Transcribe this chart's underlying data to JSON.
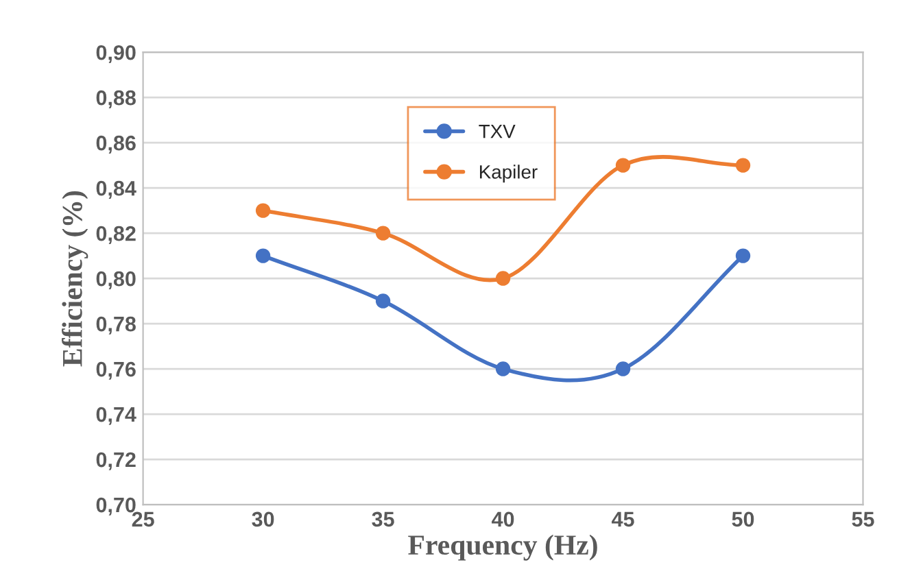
{
  "chart_data": {
    "type": "line",
    "xlabel": "Frequency (Hz)",
    "ylabel": "Efficiency (%)",
    "x": [
      30,
      35,
      40,
      45,
      50
    ],
    "series": [
      {
        "name": "TXV",
        "color": "#4472c4",
        "values": [
          0.81,
          0.79,
          0.76,
          0.76,
          0.81
        ]
      },
      {
        "name": "Kapiler",
        "color": "#ed7d31",
        "values": [
          0.83,
          0.82,
          0.8,
          0.85,
          0.85
        ]
      }
    ],
    "xlim": [
      25,
      55
    ],
    "xticks": [
      25,
      30,
      35,
      40,
      45,
      50,
      55
    ],
    "ylim": [
      0.7,
      0.9
    ],
    "yticks": [
      {
        "value": 0.7,
        "label": "0,70"
      },
      {
        "value": 0.72,
        "label": "0,72"
      },
      {
        "value": 0.74,
        "label": "0,74"
      },
      {
        "value": 0.76,
        "label": "0,76"
      },
      {
        "value": 0.78,
        "label": "0,78"
      },
      {
        "value": 0.8,
        "label": "0,80"
      },
      {
        "value": 0.82,
        "label": "0,82"
      },
      {
        "value": 0.84,
        "label": "0,84"
      },
      {
        "value": 0.86,
        "label": "0,86"
      },
      {
        "value": 0.88,
        "label": "0,88"
      },
      {
        "value": 0.9,
        "label": "0,90"
      }
    ],
    "grid": "y",
    "legend": "top",
    "marker": "circle",
    "line_style": "solid"
  }
}
